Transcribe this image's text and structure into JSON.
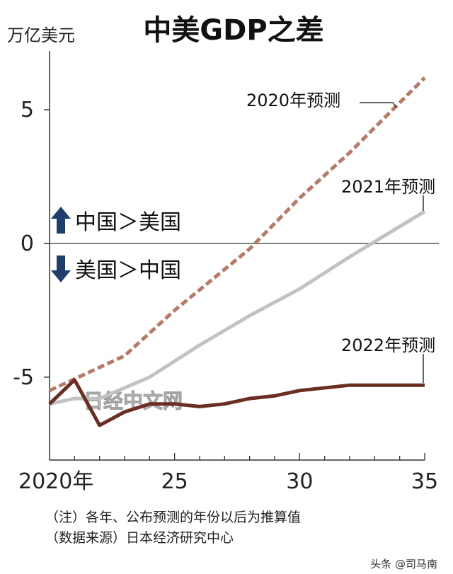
{
  "chart_data": {
    "type": "line",
    "title": "中美GDP之差",
    "ylabel": "万亿美元",
    "xlim": [
      2020,
      2035
    ],
    "ylim": [
      -8.1,
      7.2
    ],
    "y_ticks": [
      {
        "value": 5,
        "label": "5"
      },
      {
        "value": 0,
        "label": "0"
      },
      {
        "value": -5,
        "label": "-5"
      }
    ],
    "x_ticks": [
      {
        "value": 2020,
        "label": "2020年"
      },
      {
        "value": 2025,
        "label": "25"
      },
      {
        "value": 2030,
        "label": "30"
      },
      {
        "value": 2035,
        "label": "35"
      }
    ],
    "zero_line": true,
    "series": [
      {
        "name": "2020年预测",
        "color": "#b87a68",
        "style": "dashed",
        "x": [
          2020,
          2023,
          2025,
          2028,
          2030,
          2032,
          2035
        ],
        "values": [
          -5.5,
          -4.2,
          -2.5,
          -0.2,
          1.7,
          3.4,
          6.2
        ]
      },
      {
        "name": "2021年预测",
        "color": "#c2c2c2",
        "style": "solid",
        "x": [
          2020,
          2021,
          2022,
          2024,
          2026,
          2028,
          2030,
          2032,
          2035
        ],
        "values": [
          -6.0,
          -5.8,
          -5.8,
          -5.0,
          -3.8,
          -2.7,
          -1.7,
          -0.5,
          1.2
        ]
      },
      {
        "name": "2022年预测",
        "color": "#6b2e22",
        "style": "solid",
        "x": [
          2020,
          2021,
          2022,
          2023,
          2024,
          2025,
          2026,
          2027,
          2028,
          2029,
          2030,
          2032,
          2035
        ],
        "values": [
          -6.0,
          -5.1,
          -6.8,
          -6.3,
          -6.0,
          -6.0,
          -6.1,
          -6.0,
          -5.8,
          -5.7,
          -5.5,
          -5.3,
          -5.3
        ]
      }
    ],
    "annotations": {
      "up_label": "中国＞美国",
      "down_label": "美国＞中国",
      "watermark": "日经中文网"
    }
  },
  "notes": {
    "note1": "（注）各年、公布预测的年份以后为推算值",
    "note2": "（数据来源）日本经济研究中心"
  },
  "credit": "头条 @司马南",
  "colors": {
    "arrow": "#1e3f6e",
    "axis": "#333333"
  }
}
